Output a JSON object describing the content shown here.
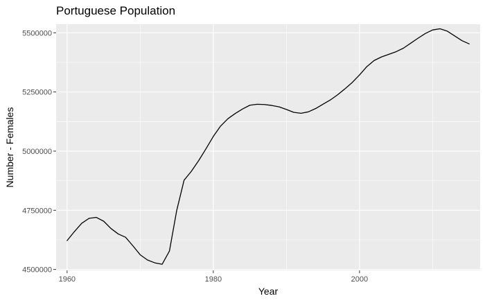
{
  "chart_data": {
    "type": "line",
    "title": "Portuguese Population",
    "xlabel": "Year",
    "ylabel": "Number - Females",
    "xlim": [
      1958.5,
      2016.5
    ],
    "ylim": [
      4496000,
      5536000
    ],
    "x_ticks": [
      1960,
      1980,
      2000
    ],
    "x_minor_ticks": [
      1970,
      1990,
      2010
    ],
    "y_ticks": [
      4500000,
      4750000,
      5000000,
      5250000,
      5500000
    ],
    "y_tick_labels": [
      "4500000",
      "4750000",
      "5000000",
      "5250000",
      "5500000"
    ],
    "y_minor_ticks": [
      4625000,
      4875000,
      5125000,
      5375000
    ],
    "grid": true,
    "colors": {
      "panel_background": "#ebebeb",
      "grid_major": "#ffffff",
      "line": "#000000",
      "tick_text": "#4d4d4d",
      "axis_tick": "#333333"
    },
    "series": [
      {
        "x": [
          1960,
          1961,
          1962,
          1963,
          1964,
          1965,
          1966,
          1967,
          1968,
          1969,
          1970,
          1971,
          1972,
          1973,
          1974,
          1975,
          1976,
          1977,
          1978,
          1979,
          1980,
          1981,
          1982,
          1983,
          1984,
          1985,
          1986,
          1987,
          1988,
          1989,
          1990,
          1991,
          1992,
          1993,
          1994,
          1995,
          1996,
          1997,
          1998,
          1999,
          2000,
          2001,
          2002,
          2003,
          2004,
          2005,
          2006,
          2007,
          2008,
          2009,
          2010,
          2011,
          2012,
          2013,
          2014,
          2015
        ],
        "values": [
          4622000,
          4660000,
          4695000,
          4716000,
          4720000,
          4704000,
          4673000,
          4650000,
          4636000,
          4600000,
          4562000,
          4540000,
          4528000,
          4522000,
          4578000,
          4750000,
          4877000,
          4915000,
          4960000,
          5010000,
          5062000,
          5106000,
          5137000,
          5159000,
          5178000,
          5194000,
          5198000,
          5197000,
          5193000,
          5187000,
          5176000,
          5164000,
          5160000,
          5166000,
          5180000,
          5198000,
          5216000,
          5238000,
          5263000,
          5290000,
          5322000,
          5357000,
          5383000,
          5398000,
          5409000,
          5420000,
          5435000,
          5456000,
          5477000,
          5497000,
          5512000,
          5517000,
          5507000,
          5487000,
          5467000,
          5453000
        ]
      }
    ]
  }
}
